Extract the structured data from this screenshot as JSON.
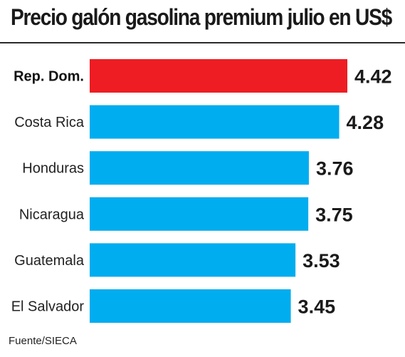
{
  "chart_data": {
    "type": "bar",
    "orientation": "horizontal",
    "title": "Precio galón gasolina premium julio en US$",
    "categories": [
      "Rep. Dom.",
      "Costa Rica",
      "Honduras",
      "Nicaragua",
      "Guatemala",
      "El Salvador"
    ],
    "values": [
      4.42,
      4.28,
      3.76,
      3.75,
      3.53,
      3.45
    ],
    "value_labels": [
      "4.42",
      "4.28",
      "3.76",
      "3.75",
      "3.53",
      "3.45"
    ],
    "highlight_category": "Rep. Dom.",
    "xlim": [
      0,
      4.42
    ],
    "grid": false,
    "legend": "none",
    "source": "Fuente/SIECA"
  },
  "colors": {
    "highlight_bar": "#ee1d23",
    "bar": "#00adef",
    "text": "#1a1a1a",
    "background": "#ffffff"
  }
}
